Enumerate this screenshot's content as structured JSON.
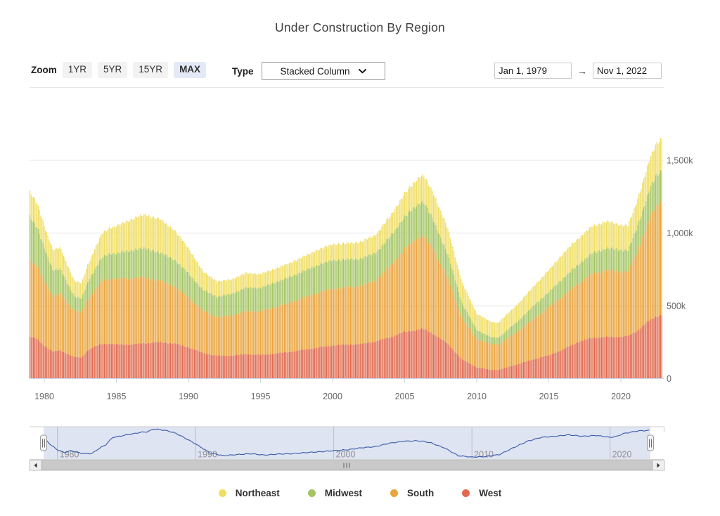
{
  "title": "Under Construction By Region",
  "controls": {
    "zoom_label": "Zoom",
    "zoom_buttons": [
      {
        "label": "1YR",
        "active": false
      },
      {
        "label": "5YR",
        "active": false
      },
      {
        "label": "15YR",
        "active": false
      },
      {
        "label": "MAX",
        "active": true
      }
    ],
    "type_label": "Type",
    "type_value": "Stacked Column",
    "type_chevron_icon": "chevron-down",
    "date_from": "Jan 1, 1979",
    "date_arrow": "→",
    "date_to": "Nov 1, 2022"
  },
  "chart_data": {
    "type": "bar",
    "stacked": true,
    "title": "Under Construction By Region",
    "xlabel": "",
    "ylabel": "",
    "x_range": [
      1979.0,
      2022.917
    ],
    "x_interval_months": 1,
    "x_tick_years": [
      1980,
      1985,
      1990,
      1995,
      2000,
      2005,
      2010,
      2015,
      2020
    ],
    "x_tick_labels": [
      "1980",
      "1985",
      "1990",
      "1995",
      "2000",
      "2005",
      "2010",
      "2015",
      "2020"
    ],
    "y_ticks": [
      {
        "value": 0,
        "label": "0"
      },
      {
        "value": 500,
        "label": "500k"
      },
      {
        "value": 1000,
        "label": "1,000k"
      },
      {
        "value": 1500,
        "label": "1,500k"
      }
    ],
    "y_grid_max": 2000,
    "legend_position": "bottom",
    "stack_order_bottom_to_top": [
      "West",
      "South",
      "Midwest",
      "Northeast"
    ],
    "anchor_years": [
      1979,
      1979.5,
      1980,
      1980.6,
      1981.1,
      1981.6,
      1982.1,
      1982.6,
      1983,
      1983.5,
      1984,
      1984.5,
      1985,
      1986,
      1986.5,
      1987,
      1988,
      1989,
      1990,
      1991,
      1992,
      1993,
      1994,
      1995,
      1996,
      1997,
      1998,
      1999,
      2000,
      2001,
      2002,
      2003,
      2004,
      2005,
      2006,
      2006.3,
      2007,
      2008,
      2009,
      2010,
      2011,
      2011.5,
      2012,
      2013,
      2014,
      2015,
      2016,
      2017,
      2018,
      2019,
      2020,
      2020.5,
      2021,
      2022,
      2022.5,
      2022.92
    ],
    "series": [
      {
        "name": "Northeast",
        "color": "#F0DE62",
        "values": [
          170,
          165,
          155,
          140,
          146,
          128,
          106,
          104,
          120,
          140,
          165,
          178,
          188,
          212,
          222,
          232,
          230,
          205,
          172,
          128,
          104,
          100,
          100,
          95,
          95,
          95,
          100,
          105,
          110,
          110,
          115,
          125,
          140,
          160,
          180,
          182,
          186,
          180,
          140,
          112,
          105,
          104,
          110,
          120,
          135,
          150,
          170,
          180,
          185,
          185,
          172,
          168,
          180,
          205,
          218,
          225
        ]
      },
      {
        "name": "Midwest",
        "color": "#A4C563",
        "values": [
          295,
          270,
          225,
          180,
          168,
          135,
          98,
          96,
          115,
          140,
          162,
          170,
          174,
          190,
          196,
          200,
          192,
          182,
          166,
          142,
          140,
          148,
          162,
          160,
          170,
          175,
          183,
          190,
          195,
          190,
          187,
          190,
          200,
          220,
          228,
          230,
          200,
          160,
          100,
          62,
          48,
          47,
          56,
          72,
          90,
          105,
          120,
          130,
          140,
          150,
          148,
          146,
          162,
          200,
          210,
          216
        ]
      },
      {
        "name": "South",
        "color": "#EAA43C",
        "values": [
          530,
          500,
          445,
          380,
          392,
          350,
          318,
          310,
          350,
          390,
          430,
          448,
          452,
          455,
          458,
          450,
          424,
          395,
          342,
          292,
          266,
          276,
          295,
          300,
          318,
          338,
          358,
          378,
          390,
          395,
          400,
          420,
          490,
          570,
          640,
          645,
          580,
          450,
          285,
          195,
          176,
          174,
          192,
          232,
          280,
          330,
          370,
          400,
          440,
          460,
          448,
          445,
          520,
          700,
          760,
          780
        ]
      },
      {
        "name": "West",
        "color": "#E0694E",
        "values": [
          290,
          270,
          225,
          185,
          194,
          170,
          148,
          144,
          195,
          220,
          238,
          240,
          234,
          234,
          238,
          244,
          250,
          242,
          216,
          176,
          156,
          158,
          168,
          163,
          172,
          183,
          198,
          213,
          228,
          233,
          238,
          255,
          285,
          320,
          338,
          340,
          308,
          238,
          130,
          78,
          60,
          59,
          74,
          104,
          134,
          160,
          200,
          250,
          280,
          285,
          288,
          292,
          320,
          400,
          430,
          440
        ]
      }
    ]
  },
  "navigator": {
    "tick_years": [
      1980,
      1990,
      2000,
      2010,
      2020
    ],
    "tick_labels": [
      "1980",
      "1990",
      "2000",
      "2010",
      "2020"
    ],
    "line_color": "#3A5BA9",
    "mask_color": "#DFE4F2",
    "handle_icon": "grip-handle",
    "line_anchors": [
      [
        1979,
        70
      ],
      [
        1979.5,
        44
      ],
      [
        1980,
        26
      ],
      [
        1980.5,
        16
      ],
      [
        1981,
        23
      ],
      [
        1981.5,
        16
      ],
      [
        1982,
        12
      ],
      [
        1982.5,
        13
      ],
      [
        1983,
        30
      ],
      [
        1983.5,
        44
      ],
      [
        1984,
        70
      ],
      [
        1984.5,
        74
      ],
      [
        1985,
        79
      ],
      [
        1985.5,
        83
      ],
      [
        1986,
        88
      ],
      [
        1986.5,
        90
      ],
      [
        1987,
        100
      ],
      [
        1987.5,
        97
      ],
      [
        1988,
        93
      ],
      [
        1988.5,
        86
      ],
      [
        1989,
        74
      ],
      [
        1990,
        47
      ],
      [
        1991,
        16
      ],
      [
        1992,
        5
      ],
      [
        1993,
        9
      ],
      [
        1994,
        12
      ],
      [
        1995,
        7
      ],
      [
        1996,
        11
      ],
      [
        1997,
        12
      ],
      [
        1998,
        16
      ],
      [
        1999,
        19
      ],
      [
        2000,
        23
      ],
      [
        2001,
        26
      ],
      [
        2002,
        33
      ],
      [
        2003,
        37
      ],
      [
        2004,
        49
      ],
      [
        2005,
        56
      ],
      [
        2006,
        58
      ],
      [
        2006.5,
        56
      ],
      [
        2007,
        51
      ],
      [
        2008,
        33
      ],
      [
        2009,
        5
      ],
      [
        2010,
        0
      ],
      [
        2011,
        2
      ],
      [
        2012,
        9
      ],
      [
        2013,
        33
      ],
      [
        2014,
        56
      ],
      [
        2015,
        70
      ],
      [
        2016,
        74
      ],
      [
        2017,
        79
      ],
      [
        2018,
        74
      ],
      [
        2019,
        77
      ],
      [
        2020,
        70
      ],
      [
        2020.5,
        74
      ],
      [
        2021,
        84
      ],
      [
        2022,
        93
      ],
      [
        2022.92,
        95
      ]
    ]
  },
  "scrollbar": {
    "left_icon": "triangle-left",
    "right_icon": "triangle-right",
    "grip_icon": "grip-lines"
  }
}
